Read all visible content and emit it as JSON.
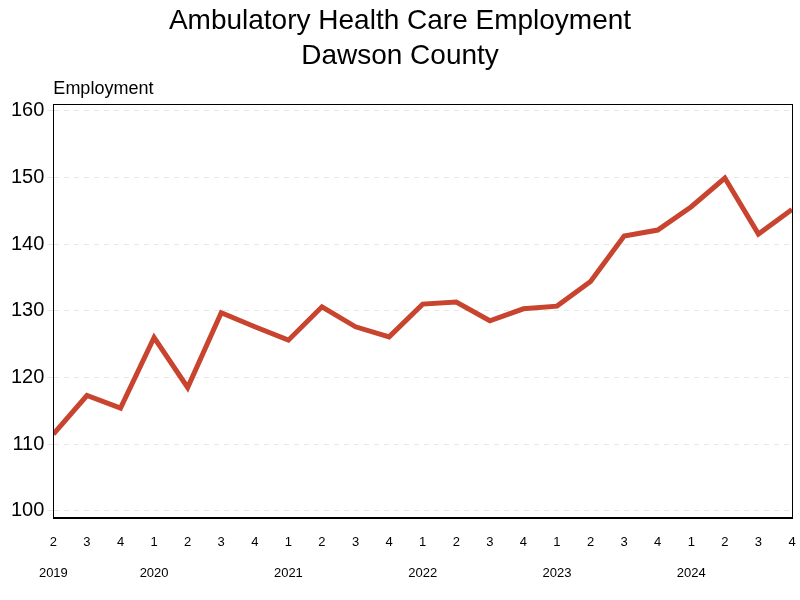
{
  "chart_data": {
    "type": "line",
    "title": [
      "Ambulatory Health Care Employment",
      "Dawson County"
    ],
    "ylabel": "Employment",
    "categories": [
      [
        "2",
        "2019"
      ],
      "3",
      "4",
      [
        "1",
        "2020"
      ],
      "2",
      "3",
      "4",
      [
        "1",
        "2021"
      ],
      "2",
      "3",
      "4",
      [
        "1",
        "2022"
      ],
      "2",
      "3",
      "4",
      [
        "1",
        "2023"
      ],
      "2",
      "3",
      "4",
      [
        "1",
        "2024"
      ],
      "2",
      "3",
      "4"
    ],
    "values": [
      111.5,
      117.3,
      115.4,
      126.0,
      118.5,
      129.7,
      127.6,
      125.6,
      130.6,
      127.6,
      126.1,
      131.0,
      131.3,
      128.5,
      130.3,
      130.7,
      134.4,
      141.2,
      142.1,
      145.6,
      149.9,
      141.5,
      145.2
    ],
    "color": "#c8442f",
    "ylim": [
      99,
      161
    ],
    "yticks": [
      100,
      110,
      120,
      130,
      140,
      150,
      160
    ],
    "grid": true
  }
}
